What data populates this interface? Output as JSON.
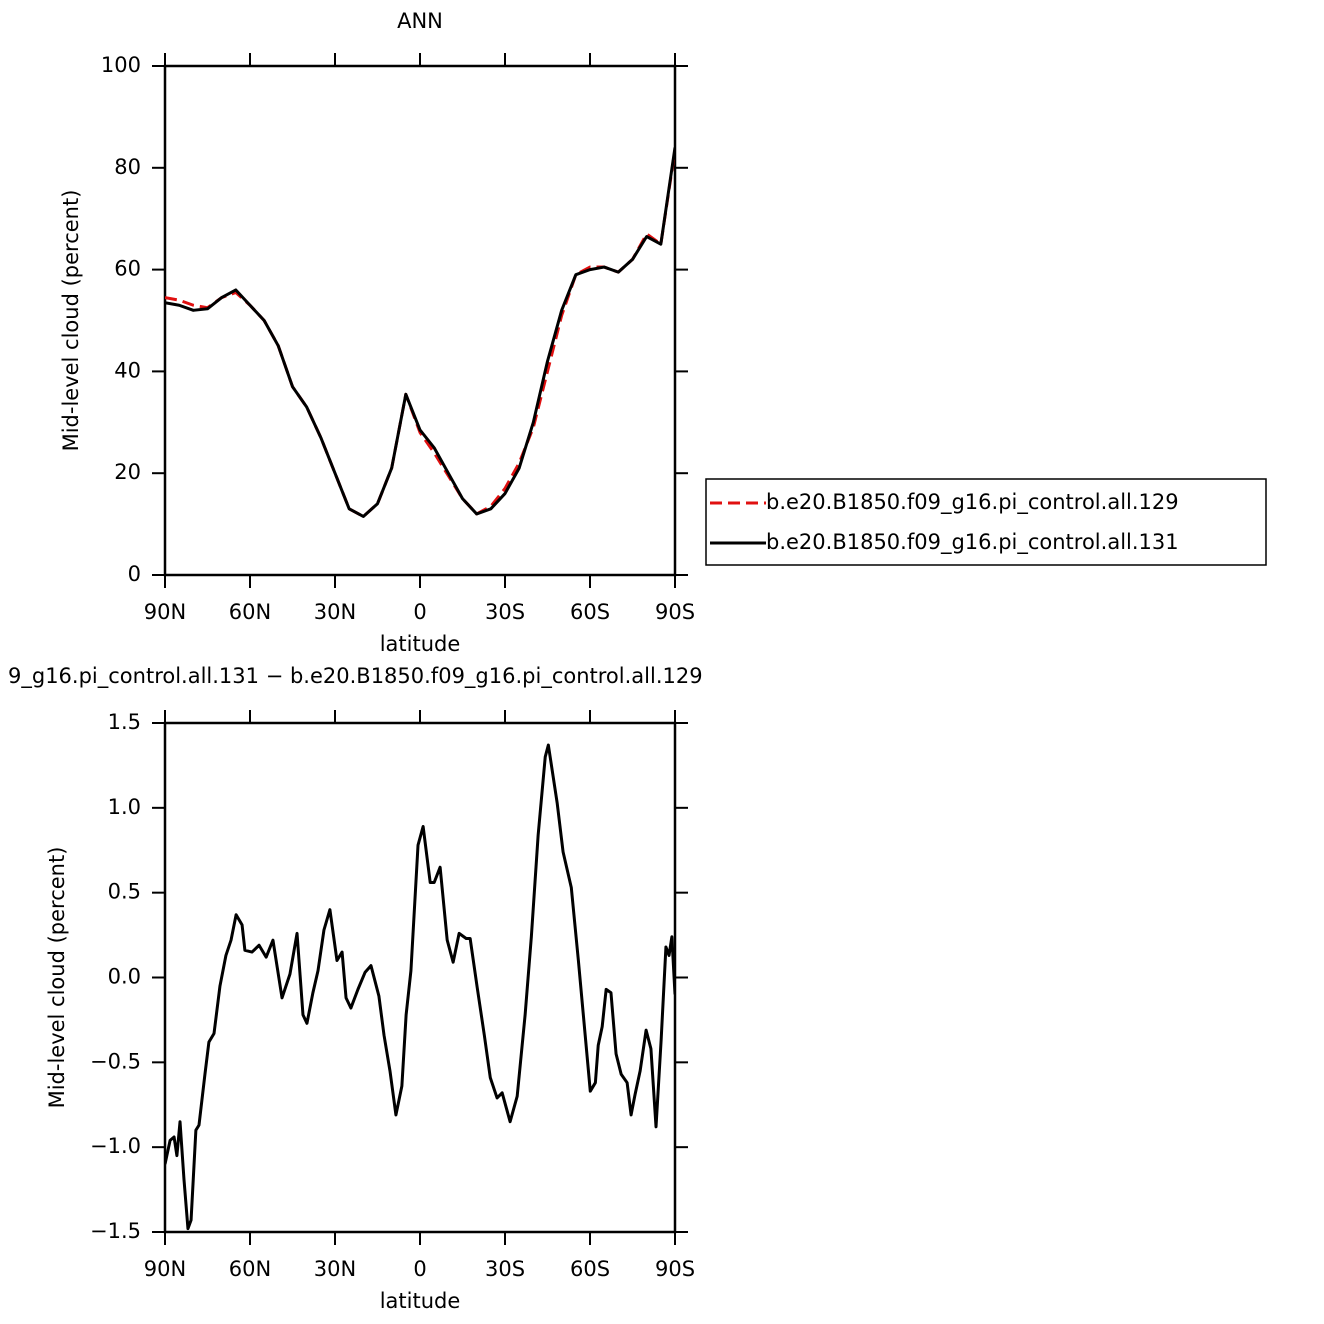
{
  "chart_data": [
    {
      "type": "line",
      "title": "ANN",
      "x_label": "latitude",
      "y_label": "Mid-level cloud (percent)",
      "x": [
        90,
        85,
        80,
        75,
        70,
        65,
        60,
        55,
        50,
        45,
        40,
        35,
        30,
        25,
        20,
        15,
        10,
        5,
        0,
        -5,
        -10,
        -15,
        -20,
        -25,
        -30,
        -35,
        -40,
        -45,
        -50,
        -55,
        -60,
        -65,
        -70,
        -75,
        -80,
        -85,
        -90
      ],
      "xlim": [
        90,
        -90
      ],
      "xticks": [
        {
          "value": 90,
          "label": "90N"
        },
        {
          "value": 60,
          "label": "60N"
        },
        {
          "value": 30,
          "label": "30N"
        },
        0,
        {
          "value": -30,
          "label": "30S"
        },
        {
          "value": -60,
          "label": "60S"
        },
        {
          "value": -90,
          "label": "90S"
        }
      ],
      "ylim": [
        0,
        100
      ],
      "yticks": [
        0,
        20,
        40,
        60,
        80,
        100
      ],
      "legend": "outside-right",
      "series": [
        {
          "name": "b.e20.B1850.f09_g16.pi_control.all.129",
          "color": "#e01010",
          "style": "dashed",
          "values": [
            54.5,
            54,
            53,
            52.5,
            54.5,
            55.5,
            53,
            50,
            45,
            37,
            33,
            27,
            20,
            13,
            11.5,
            14,
            21,
            35.5,
            28,
            24,
            19.5,
            15,
            12,
            13.5,
            17,
            22,
            29,
            40,
            51,
            59,
            60.5,
            60.5,
            59.5,
            62,
            67,
            65,
            83.5
          ]
        },
        {
          "name": "b.e20.B1850.f09_g16.pi_control.all.131",
          "color": "#000000",
          "style": "solid",
          "values": [
            53.5,
            53,
            52,
            52.3,
            54.5,
            56,
            53,
            50,
            45,
            37,
            33,
            27,
            20,
            13,
            11.5,
            14,
            21,
            35.5,
            28.5,
            25,
            20,
            15,
            12,
            13,
            16,
            21,
            30,
            42,
            52,
            59,
            60,
            60.5,
            59.5,
            62,
            66.5,
            65,
            84
          ]
        }
      ]
    },
    {
      "type": "line",
      "title": "9_g16.pi_control.all.131 − b.e20.B1850.f09_g16.pi_control.all.129",
      "x_label": "latitude",
      "y_label": "Mid-level cloud (percent)",
      "x": [
        90,
        88.2,
        86.8,
        85.8,
        84.7,
        83.3,
        81.9,
        80.8,
        79.1,
        78.0,
        75.9,
        74.5,
        72.7,
        70.6,
        68.5,
        66.7,
        64.9,
        62.8,
        61.8,
        59.3,
        56.8,
        54.3,
        51.9,
        48.7,
        45.9,
        43.4,
        41.3,
        39.9,
        37.8,
        36.0,
        33.9,
        31.8,
        29.3,
        27.5,
        26.1,
        24.4,
        21.9,
        19.4,
        17.3,
        14.5,
        12.7,
        10.6,
        8.5,
        6.4,
        4.9,
        3.2,
        0.7,
        -1.1,
        -3.6,
        -5.0,
        -7.1,
        -9.6,
        -11.7,
        -13.8,
        -16.3,
        -17.7,
        -20.2,
        -22.7,
        -24.8,
        -27.2,
        -29.0,
        -31.8,
        -34.3,
        -37.1,
        -39.3,
        -41.7,
        -44.2,
        -45.3,
        -48.4,
        -50.5,
        -53.4,
        -55.9,
        -58.3,
        -60.1,
        -61.9,
        -62.9,
        -64.3,
        -65.7,
        -67.4,
        -69.2,
        -71.0,
        -73.1,
        -74.5,
        -75.9,
        -77.7,
        -79.8,
        -81.5,
        -83.3,
        -85.1,
        -86.8,
        -87.9,
        -88.9,
        -90
      ],
      "values": [
        -1.1,
        -0.96,
        -0.94,
        -1.05,
        -0.85,
        -1.19,
        -1.48,
        -1.43,
        -0.9,
        -0.87,
        -0.57,
        -0.38,
        -0.33,
        -0.05,
        0.13,
        0.22,
        0.37,
        0.31,
        0.16,
        0.15,
        0.19,
        0.12,
        0.22,
        -0.12,
        0.02,
        0.26,
        -0.22,
        -0.27,
        -0.09,
        0.04,
        0.28,
        0.4,
        0.1,
        0.15,
        -0.12,
        -0.18,
        -0.07,
        0.03,
        0.07,
        -0.11,
        -0.34,
        -0.55,
        -0.81,
        -0.64,
        -0.22,
        0.04,
        0.78,
        0.89,
        0.56,
        0.56,
        0.65,
        0.22,
        0.09,
        0.26,
        0.23,
        0.23,
        -0.06,
        -0.34,
        -0.59,
        -0.71,
        -0.68,
        -0.85,
        -0.7,
        -0.22,
        0.24,
        0.84,
        1.3,
        1.37,
        1.03,
        0.74,
        0.53,
        0.1,
        -0.34,
        -0.67,
        -0.62,
        -0.4,
        -0.29,
        -0.07,
        -0.09,
        -0.45,
        -0.57,
        -0.62,
        -0.81,
        -0.69,
        -0.55,
        -0.31,
        -0.42,
        -0.88,
        -0.37,
        0.18,
        0.13,
        0.24,
        -0.1
      ],
      "color": "#000000",
      "xlim": [
        90,
        -90
      ],
      "xticks": [
        {
          "value": 90,
          "label": "90N"
        },
        {
          "value": 60,
          "label": "60N"
        },
        {
          "value": 30,
          "label": "30N"
        },
        0,
        {
          "value": -30,
          "label": "30S"
        },
        {
          "value": -60,
          "label": "60S"
        },
        {
          "value": -90,
          "label": "90S"
        }
      ],
      "ylim": [
        -1.5,
        1.5
      ],
      "yticks": [
        {
          "value": -1.5,
          "label": "−1.5"
        },
        {
          "value": -1.0,
          "label": "−1.0"
        },
        {
          "value": -0.5,
          "label": "−0.5"
        },
        {
          "value": 0,
          "label": "0.0"
        },
        0.5,
        {
          "value": 1.0,
          "label": "1.0"
        },
        1.5
      ]
    }
  ]
}
